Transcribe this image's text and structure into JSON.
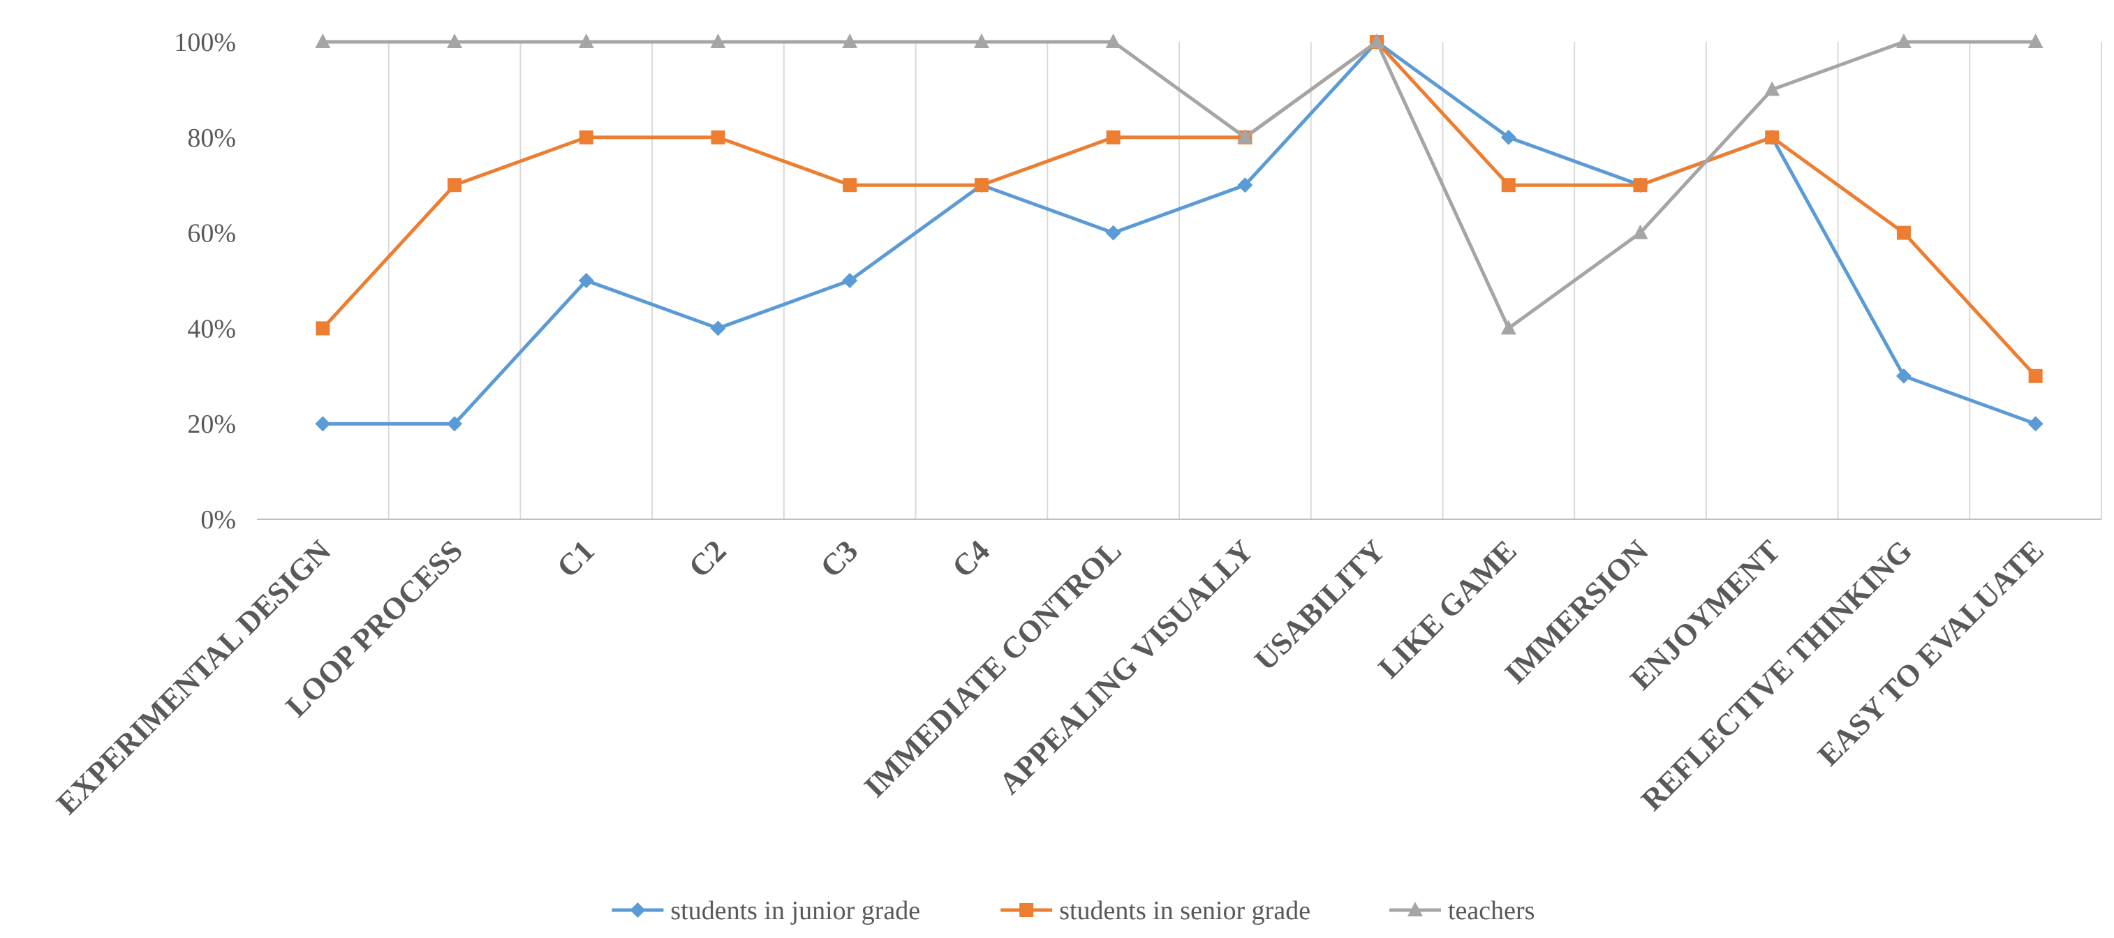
{
  "chart_data": {
    "type": "line",
    "title": "",
    "xlabel": "",
    "ylabel": "",
    "ylim": [
      0,
      100
    ],
    "y_ticks": [
      "0%",
      "20%",
      "40%",
      "60%",
      "80%",
      "100%"
    ],
    "y_tick_values": [
      0,
      20,
      40,
      60,
      80,
      100
    ],
    "grid": "vertical",
    "legend": "bottom",
    "categories": [
      "EXPERIMENTAL DESIGN",
      "LOOP PROCESS",
      "C1",
      "C2",
      "C3",
      "C4",
      "IMMEDIATE CONTROL",
      "APPEALING VISUALLY",
      "USABILITY",
      "LIKE GAME",
      "IMMERSION",
      "ENJOYMENT",
      "REFLECTIVE THINKING",
      "EASY TO EVALUATE"
    ],
    "series": [
      {
        "name": "students in junior grade",
        "marker": "diamond",
        "color": "#5b9bd5",
        "values": [
          20,
          20,
          50,
          40,
          50,
          70,
          60,
          70,
          100,
          80,
          70,
          80,
          30,
          20
        ]
      },
      {
        "name": "students in senior grade",
        "marker": "square",
        "color": "#ed7d31",
        "values": [
          40,
          70,
          80,
          80,
          70,
          70,
          80,
          80,
          100,
          70,
          70,
          80,
          60,
          30
        ]
      },
      {
        "name": "teachers",
        "marker": "triangle",
        "color": "#a5a5a5",
        "values": [
          100,
          100,
          100,
          100,
          100,
          100,
          100,
          80,
          100,
          40,
          60,
          90,
          100,
          100
        ]
      }
    ]
  }
}
